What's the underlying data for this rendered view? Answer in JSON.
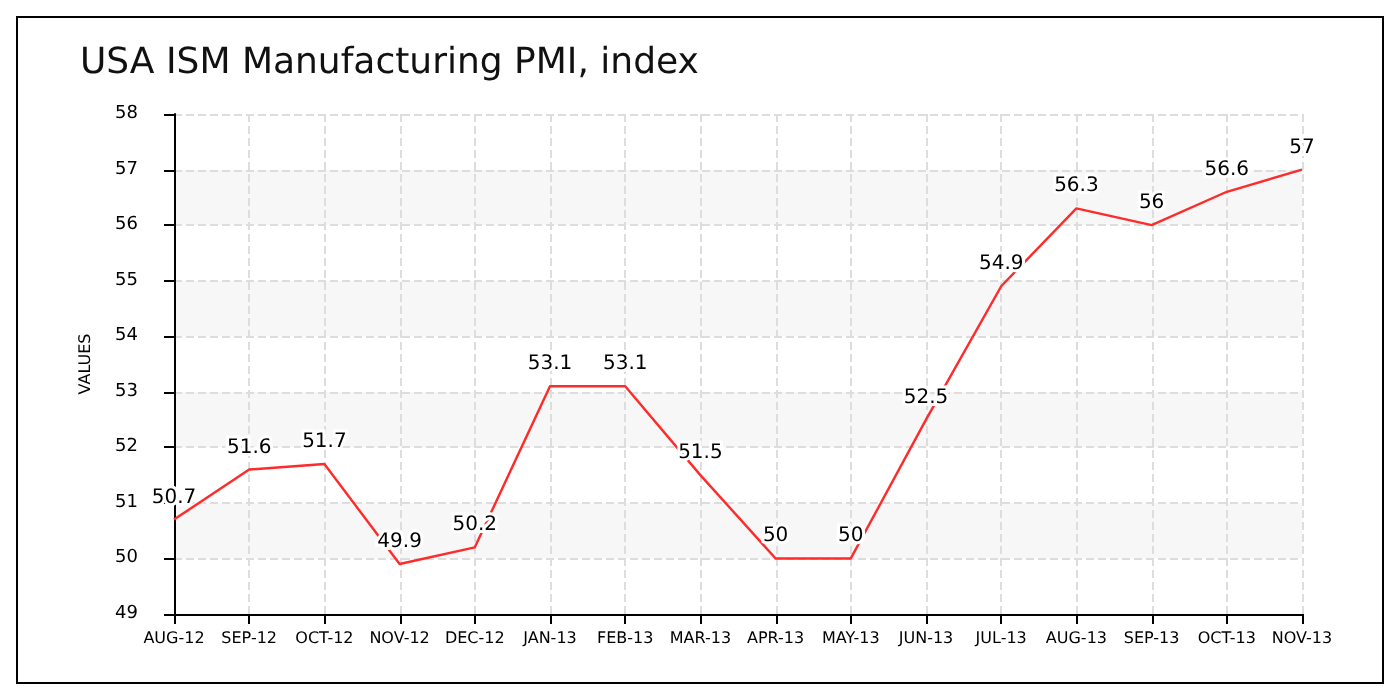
{
  "chart_data": {
    "type": "line",
    "title": "USA ISM Manufacturing PMI, index",
    "ylabel": "VALUES",
    "categories": [
      "AUG-12",
      "SEP-12",
      "OCT-12",
      "NOV-12",
      "DEC-12",
      "JAN-13",
      "FEB-13",
      "MAR-13",
      "APR-13",
      "MAY-13",
      "JUN-13",
      "JUL-13",
      "AUG-13",
      "SEP-13",
      "OCT-13",
      "NOV-13"
    ],
    "series": [
      {
        "color": "#ff2a2a",
        "values": [
          50.7,
          51.6,
          51.7,
          49.9,
          50.2,
          53.1,
          53.1,
          51.5,
          50,
          50,
          52.5,
          54.9,
          56.3,
          56,
          56.6,
          57
        ]
      }
    ],
    "ylim": [
      49,
      58
    ],
    "yticks": [
      49,
      50,
      51,
      52,
      53,
      54,
      55,
      56,
      57,
      58
    ],
    "grid": true,
    "data_labels": true,
    "marker": "none",
    "line_style": "solid"
  }
}
